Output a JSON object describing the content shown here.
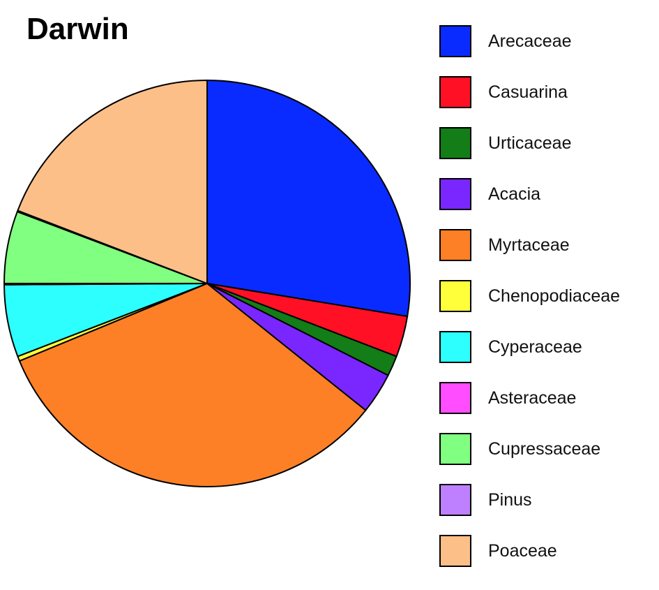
{
  "chart_data": {
    "type": "pie",
    "title": "Darwin",
    "categories": [
      "Arecaceae",
      "Casuarina",
      "Urticaceae",
      "Acacia",
      "Myrtaceae",
      "Chenopodiaceae",
      "Cyperaceae",
      "Asteraceae",
      "Cupressaceae",
      "Pinus",
      "Poaceae"
    ],
    "values": [
      28.8,
      3.4,
      1.7,
      3.4,
      34.5,
      0.4,
      6.0,
      0.1,
      6.0,
      0.1,
      20.0
    ],
    "colors": [
      "#0a2bff",
      "#ff1024",
      "#137d17",
      "#7a26ff",
      "#fd8026",
      "#ffff3a",
      "#2dffff",
      "#ff4dff",
      "#80ff80",
      "#bf80ff",
      "#fdbf88"
    ],
    "start_angle_deg": 0,
    "direction": "clockwise",
    "legend_position": "right"
  }
}
